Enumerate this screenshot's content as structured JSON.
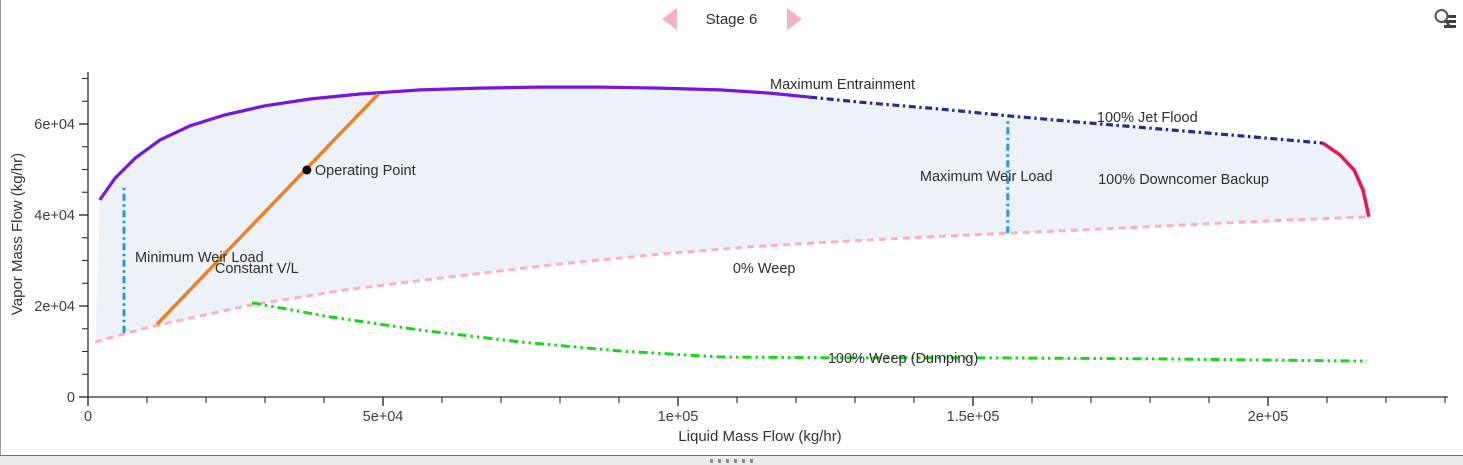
{
  "header": {
    "stage_label": "Stage 6"
  },
  "icons": {
    "previous": "left-triangle-icon",
    "next": "right-triangle-icon",
    "plot_settings": "magnifier-list-icon"
  },
  "colors": {
    "arrow_pink": "#f6b0c3",
    "envelope_fill": "#edf2f8",
    "axis": "#2f2f2f",
    "text": "#333333"
  },
  "chart_data": {
    "type": "line",
    "title": "Stage 6",
    "xlabel": "Liquid Mass Flow (kg/hr)",
    "ylabel": "Vapor Mass Flow (kg/hr)",
    "xlim": [
      0,
      230000
    ],
    "ylim": [
      0,
      70000
    ],
    "grid": false,
    "legend": "none",
    "x_minor_step": 10000,
    "y_minor_step": 5000,
    "x_major_ticks": [
      {
        "v": 0,
        "label": "0"
      },
      {
        "v": 50000,
        "label": "5e+04"
      },
      {
        "v": 100000,
        "label": "1e+05"
      },
      {
        "v": 150000,
        "label": "1.5e+05"
      },
      {
        "v": 200000,
        "label": "2e+05"
      }
    ],
    "y_major_ticks": [
      {
        "v": 0,
        "label": "0"
      },
      {
        "v": 20000,
        "label": "2e+04"
      },
      {
        "v": 40000,
        "label": "4e+04"
      },
      {
        "v": 60000,
        "label": "6e+04"
      }
    ],
    "envelope": {
      "fill": "#edf2f8",
      "top": [
        "Maximum Entrainment",
        "100% Jet Flood",
        "100% Downcomer Backup"
      ],
      "bottom": [
        "0% Weep"
      ]
    },
    "series": [
      {
        "name": "Maximum Entrainment",
        "color": "#7715e3",
        "style": "solid",
        "width": 3.2,
        "points": [
          [
            2000,
            43300
          ],
          [
            4600,
            48100
          ],
          [
            8000,
            52500
          ],
          [
            12200,
            56500
          ],
          [
            17300,
            59600
          ],
          [
            23200,
            62000
          ],
          [
            30000,
            64000
          ],
          [
            37600,
            65500
          ],
          [
            46100,
            66600
          ],
          [
            56300,
            67500
          ],
          [
            66400,
            67900
          ],
          [
            76600,
            68100
          ],
          [
            86800,
            68100
          ],
          [
            96900,
            67900
          ],
          [
            107100,
            67500
          ],
          [
            115600,
            66800
          ],
          [
            122400,
            65900
          ]
        ]
      },
      {
        "name": "100% Jet Flood",
        "color": "#282c85",
        "style": "dashdot",
        "width": 3.2,
        "points": [
          [
            122400,
            65900
          ],
          [
            132600,
            64600
          ],
          [
            144400,
            63300
          ],
          [
            155900,
            61800
          ],
          [
            168100,
            60400
          ],
          [
            181700,
            58900
          ],
          [
            195300,
            57400
          ],
          [
            209300,
            55800
          ]
        ]
      },
      {
        "name": "100% Downcomer Backup",
        "color": "#f01157",
        "style": "solid",
        "width": 3.5,
        "points": [
          [
            209300,
            55800
          ],
          [
            212200,
            53200
          ],
          [
            214600,
            49900
          ],
          [
            216100,
            45500
          ],
          [
            217100,
            39600
          ]
        ]
      },
      {
        "name": "0% Weep",
        "color": "#fbaec6",
        "style": "dashed",
        "width": 3,
        "points": [
          [
            1200,
            12100
          ],
          [
            10500,
            15400
          ],
          [
            27500,
            20200
          ],
          [
            44400,
            23700
          ],
          [
            61400,
            26400
          ],
          [
            78300,
            29000
          ],
          [
            95300,
            31200
          ],
          [
            112200,
            33000
          ],
          [
            129200,
            34300
          ],
          [
            146100,
            35400
          ],
          [
            155900,
            36000
          ],
          [
            171500,
            36900
          ],
          [
            188500,
            38000
          ],
          [
            203700,
            38900
          ],
          [
            217100,
            39600
          ]
        ]
      },
      {
        "name": "100% Weep (Dumping)",
        "color": "#17d817",
        "style": "dashdotdot",
        "width": 3,
        "points": [
          [
            27800,
            20700
          ],
          [
            41000,
            17600
          ],
          [
            56300,
            14700
          ],
          [
            73200,
            12100
          ],
          [
            90200,
            10100
          ],
          [
            107100,
            8800
          ],
          [
            129200,
            8600
          ],
          [
            154600,
            8600
          ],
          [
            180000,
            8400
          ],
          [
            200300,
            8100
          ],
          [
            216800,
            7900
          ]
        ]
      },
      {
        "name": "Minimum Weir Load",
        "color": "#2196f3",
        "style": "dashdot",
        "width": 3,
        "points": [
          [
            6100,
            14100
          ],
          [
            6100,
            46600
          ]
        ]
      },
      {
        "name": "Maximum Weir Load",
        "color": "#2196f3",
        "style": "dashdot",
        "width": 3,
        "points": [
          [
            155900,
            36000
          ],
          [
            155900,
            61300
          ]
        ]
      },
      {
        "name": "Constant V/L",
        "color": "#ef8122",
        "style": "solid",
        "width": 3.5,
        "points": [
          [
            11700,
            16000
          ],
          [
            49200,
            66600
          ]
        ]
      }
    ],
    "operating_point": {
      "x": 37100,
      "y": 49900,
      "label": "Operating Point",
      "color": "#0a0a0a"
    },
    "annotations": [
      {
        "name": "maximum-entrainment",
        "text": "Maximum Entrainment",
        "x": 115600,
        "y": 68800
      },
      {
        "name": "jet-flood",
        "text": "100% Jet Flood",
        "x": 171000,
        "y": 61500
      },
      {
        "name": "maximum-weir-load",
        "text": "Maximum Weir Load",
        "x": 141000,
        "y": 48600
      },
      {
        "name": "downcomer-backup",
        "text": "100% Downcomer Backup",
        "x": 171200,
        "y": 47900
      },
      {
        "name": "minimum-weir-load",
        "text": "Minimum Weir Load",
        "x": 7970,
        "y": 30800
      },
      {
        "name": "constant-vl",
        "text": "Constant V/L",
        "x": 21500,
        "y": 28400
      },
      {
        "name": "weep-0",
        "text": "0% Weep",
        "x": 109300,
        "y": 28400
      },
      {
        "name": "weep-100",
        "text": "100% Weep (Dumping)",
        "x": 125400,
        "y": 8600
      }
    ]
  }
}
